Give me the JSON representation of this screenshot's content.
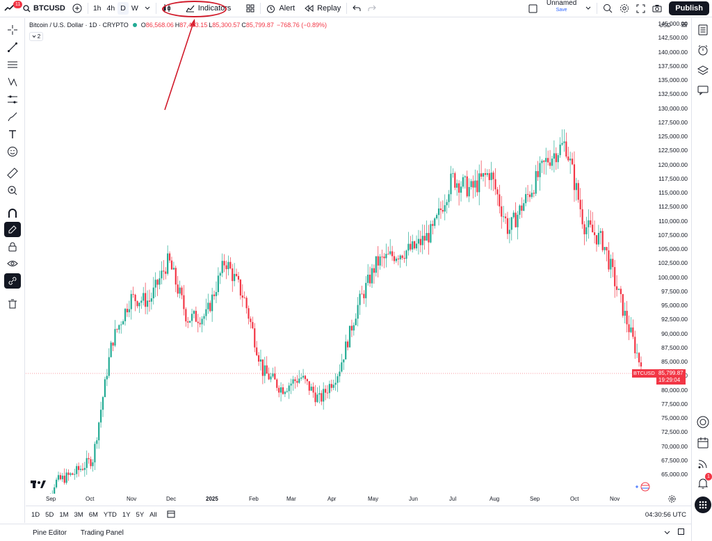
{
  "toolbar": {
    "notification_count": "11",
    "symbol": "BTCUSD",
    "intervals": [
      "1h",
      "4h",
      "D",
      "W"
    ],
    "active_interval": "D",
    "indicators_label": "Indicators",
    "alert_label": "Alert",
    "replay_label": "Replay",
    "layout_name": "Unnamed",
    "layout_status": "Save",
    "publish_label": "Publish"
  },
  "legend": {
    "title": "Bitcoin / U.S. Dollar · 1D · CRYPTO",
    "open_label": "O",
    "open": "86,568.06",
    "high_label": "H",
    "high": "87,403.15",
    "low_label": "L",
    "low": "85,300.57",
    "close_label": "C",
    "close": "85,799.87",
    "change": "−768.76 (−0.89%)",
    "collapsed_count": "2"
  },
  "price_axis": {
    "currency": "USD",
    "labels": [
      "145,000.00",
      "142,500.00",
      "140,000.00",
      "137,500.00",
      "135,000.00",
      "132,500.00",
      "130,000.00",
      "127,500.00",
      "125,000.00",
      "122,500.00",
      "120,000.00",
      "117,500.00",
      "115,000.00",
      "112,500.00",
      "110,000.00",
      "107,500.00",
      "105,000.00",
      "102,500.00",
      "100,000.00",
      "97,500.00",
      "95,000.00",
      "92,500.00",
      "90,000.00",
      "87,500.00",
      "85,000.00",
      "82,500.00",
      "80,000.00",
      "77,500.00",
      "75,000.00",
      "72,500.00",
      "70,000.00",
      "67,500.00",
      "65,000.00"
    ],
    "current_symbol_tag": "BTCUSD",
    "current_price": "85,799.87",
    "countdown": "19:29:04"
  },
  "time_axis": {
    "labels": [
      "Sep",
      "Oct",
      "Nov",
      "Dec",
      "2025",
      "Feb",
      "Mar",
      "Apr",
      "May",
      "Jun",
      "Jul",
      "Aug",
      "Sep",
      "Oct",
      "Nov"
    ]
  },
  "range_bar": {
    "ranges": [
      "1D",
      "5D",
      "1M",
      "3M",
      "6M",
      "YTD",
      "1Y",
      "5Y",
      "All"
    ],
    "clock": "04:30:56 UTC"
  },
  "bottom_panel": {
    "tabs": [
      "Pine Editor",
      "Trading Panel"
    ]
  },
  "right_sidebar": {
    "alert_badge": "1"
  },
  "colors": {
    "up": "#22ab94",
    "down": "#f23645",
    "accent": "#2962ff",
    "annotation": "#d11a2a"
  },
  "chart_data": {
    "type": "candlestick",
    "symbol": "BTCUSD",
    "interval": "1D",
    "y_range": [
      65000,
      145000
    ],
    "current_price": 85799.87,
    "closes": [
      {
        "x": "Sep",
        "y": 57000
      },
      {
        "x": "Oct",
        "y": 66000
      },
      {
        "x": "Oct-mid",
        "y": 67500
      },
      {
        "x": "Nov",
        "y": 70000
      },
      {
        "x": "Nov-mid",
        "y": 90000
      },
      {
        "x": "Nov-end",
        "y": 97500
      },
      {
        "x": "Dec",
        "y": 97000
      },
      {
        "x": "Dec-mid",
        "y": 104000
      },
      {
        "x": "Dec-end",
        "y": 94000
      },
      {
        "x": "2025",
        "y": 94500
      },
      {
        "x": "Jan-mid",
        "y": 104000
      },
      {
        "x": "Feb",
        "y": 97500
      },
      {
        "x": "Feb-end",
        "y": 85000
      },
      {
        "x": "Mar",
        "y": 82000
      },
      {
        "x": "Mar-mid",
        "y": 84000
      },
      {
        "x": "Apr",
        "y": 80000
      },
      {
        "x": "Apr-mid",
        "y": 85000
      },
      {
        "x": "May",
        "y": 96000
      },
      {
        "x": "May-mid",
        "y": 103500
      },
      {
        "x": "Jun",
        "y": 105000
      },
      {
        "x": "Jun-mid",
        "y": 106000
      },
      {
        "x": "Jul",
        "y": 109000
      },
      {
        "x": "Jul-mid",
        "y": 118000
      },
      {
        "x": "Aug",
        "y": 116000
      },
      {
        "x": "Aug-mid",
        "y": 119000
      },
      {
        "x": "Sep",
        "y": 109000
      },
      {
        "x": "Sep-mid",
        "y": 115000
      },
      {
        "x": "Oct",
        "y": 121000
      },
      {
        "x": "Oct-peak",
        "y": 124000
      },
      {
        "x": "Oct-end",
        "y": 110000
      },
      {
        "x": "Nov",
        "y": 107000
      },
      {
        "x": "Nov-mid",
        "y": 96000
      },
      {
        "x": "Nov-now",
        "y": 85799.87
      }
    ]
  }
}
